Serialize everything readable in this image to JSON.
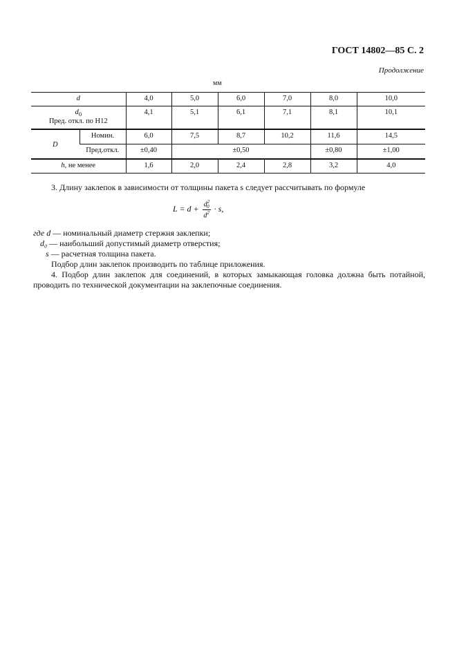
{
  "header": {
    "doc_ref": "ГОСТ 14802—85 С. 2",
    "continuation": "Продолжение",
    "unit": "мм"
  },
  "table": {
    "d": {
      "label": "d",
      "values": [
        "4,0",
        "5,0",
        "6,0",
        "7,0",
        "8,0",
        "10,0"
      ]
    },
    "d0": {
      "label": "d",
      "sub": "0",
      "note": "Пред. откл. по H12",
      "values": [
        "4,1",
        "5,1",
        "6,1",
        "7,1",
        "8,1",
        "10,1"
      ]
    },
    "D": {
      "label": "D",
      "nominal_label": "Номин.",
      "nominal": [
        "6,0",
        "7,5",
        "8,7",
        "10,2",
        "11,6",
        "14,5"
      ],
      "tol_label": "Пред.откл.",
      "tol": [
        "±0,40",
        "±0,50",
        "±0,80",
        "±1,00"
      ]
    },
    "h": {
      "label": "h",
      "suffix": ", не менее",
      "values": [
        "1,6",
        "2,0",
        "2,4",
        "2,8",
        "3,2",
        "4,0"
      ]
    }
  },
  "body": {
    "p3": "3. Длину заклепок в зависимости от толщины пакета s следует рассчитывать по формуле",
    "formula": {
      "lhs": "L = d +",
      "num": "d",
      "num_sub": "0",
      "num_sup": "2",
      "den": "d",
      "den_sup": "2",
      "tail": "· s,"
    },
    "defs": [
      {
        "sym": "где d",
        "text": " — номинальный диаметр стержня заклепки;"
      },
      {
        "sym": "d₀",
        "text": " — наибольший допустимый диаметр отверстия;"
      },
      {
        "sym": "s",
        "text": " — расчетная толщина пакета."
      }
    ],
    "p_selection": "Подбор длин заклепок производить по таблице приложения.",
    "p4": "4. Подбор длин заклепок для соединений, в которых замыкающая головка должна быть потайной, проводить по технической документации на заклепочные соединения."
  }
}
